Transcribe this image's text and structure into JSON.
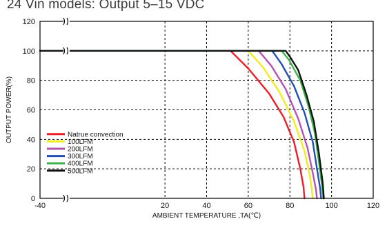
{
  "chart_data": {
    "type": "line",
    "title": "24 Vin models: Output 5–15 VDC",
    "xlabel": "AMBIENT TEMPERATURE ,TA(℃)",
    "ylabel": "OUTPUT POWER(%)",
    "xlim": [
      -40,
      120
    ],
    "ylim": [
      0,
      120
    ],
    "x_ticks": [
      "-40",
      "20",
      "40",
      "60",
      "80",
      "100",
      "120"
    ],
    "x_tick_values": [
      -40,
      20,
      40,
      60,
      80,
      100,
      120
    ],
    "y_ticks": [
      "0",
      "20",
      "40",
      "60",
      "80",
      "100",
      "120"
    ],
    "y_tick_values": [
      0,
      20,
      40,
      60,
      80,
      100,
      120
    ],
    "axis_break": true,
    "grid": true,
    "legend_placement": "bottom-left",
    "series": [
      {
        "name": "Natrue convection",
        "color": "#ee1c25",
        "x": [
          -40,
          51.5,
          60,
          70,
          77,
          82,
          85,
          86.5,
          87
        ],
        "y": [
          100,
          100,
          88,
          71,
          55,
          38,
          20,
          8,
          0
        ]
      },
      {
        "name": "100LFM",
        "color": "#f2ec1c",
        "x": [
          -40,
          60,
          67,
          75,
          82,
          87,
          89.5,
          90.5,
          91
        ],
        "y": [
          100,
          100,
          89,
          72,
          52,
          32,
          16,
          6,
          0
        ]
      },
      {
        "name": "200LFM",
        "color": "#b552b5",
        "x": [
          -40,
          65,
          71,
          78,
          84,
          88.5,
          91,
          92.5,
          93
        ],
        "y": [
          100,
          100,
          90,
          74,
          54,
          34,
          17,
          6,
          0
        ]
      },
      {
        "name": "300LFM",
        "color": "#1f4fb4",
        "x": [
          -40,
          71.5,
          76,
          82,
          87,
          91,
          93,
          94.5,
          95
        ],
        "y": [
          100,
          100,
          91,
          76,
          58,
          38,
          20,
          7,
          0
        ]
      },
      {
        "name": "400LFM",
        "color": "#3cb44a",
        "x": [
          -40,
          76,
          79.5,
          85,
          89,
          92,
          94,
          95.5,
          96
        ],
        "y": [
          100,
          100,
          94,
          80,
          62,
          44,
          24,
          8,
          0
        ]
      },
      {
        "name": "500LFM",
        "color": "#111111",
        "x": [
          -40,
          78,
          80,
          84,
          88,
          91.5,
          94,
          95.8,
          96.3
        ],
        "y": [
          100,
          100,
          96,
          87,
          70,
          52,
          30,
          10,
          0
        ]
      }
    ]
  }
}
